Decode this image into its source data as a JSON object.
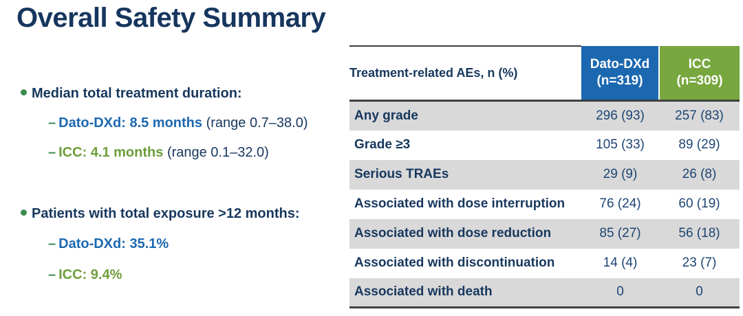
{
  "title": "Overall Safety Summary",
  "bullets": [
    {
      "label": "Median total treatment duration:",
      "items": [
        {
          "value": "Dato-DXd: 8.5 months",
          "range": "(range 0.7–38.0)",
          "accent": "blue"
        },
        {
          "value": "ICC: 4.1 months",
          "range": "(range 0.1–32.0)",
          "accent": "green"
        }
      ]
    },
    {
      "label": "Patients with total exposure >12 months:",
      "items": [
        {
          "value": "Dato-DXd: 35.1%",
          "range": "",
          "accent": "blue"
        },
        {
          "value": "ICC: 9.4%",
          "range": "",
          "accent": "green"
        }
      ]
    }
  ],
  "table": {
    "header_label": "Treatment-related AEs, n (%)",
    "columns": [
      {
        "name": "Dato-DXd",
        "n": "(n=319)",
        "color": "#1C68B0"
      },
      {
        "name": "ICC",
        "n": "(n=309)",
        "color": "#77A73E"
      }
    ],
    "rows": [
      {
        "label": "Any grade",
        "dato": "296 (93)",
        "icc": "257 (83)"
      },
      {
        "label": "Grade ≥3",
        "dato": "105 (33)",
        "icc": "89 (29)"
      },
      {
        "label": "Serious TRAEs",
        "dato": "29 (9)",
        "icc": "26 (8)"
      },
      {
        "label": "Associated with dose interruption",
        "dato": "76 (24)",
        "icc": "60 (19)"
      },
      {
        "label": "Associated with dose reduction",
        "dato": "85 (27)",
        "icc": "56 (18)"
      },
      {
        "label": "Associated with discontinuation",
        "dato": "14 (4)",
        "icc": "23 (7)"
      },
      {
        "label": "Associated with death",
        "dato": "0",
        "icc": "0"
      }
    ]
  },
  "colors": {
    "title_navy": "#16365E",
    "body_navy": "#17375D",
    "accent_blue": "#1C68B0",
    "accent_green": "#6E9E3B",
    "bullet_green": "#3E8C4F",
    "row_gray": "#D9D9D9",
    "border_dark": "#3F3F3F"
  }
}
